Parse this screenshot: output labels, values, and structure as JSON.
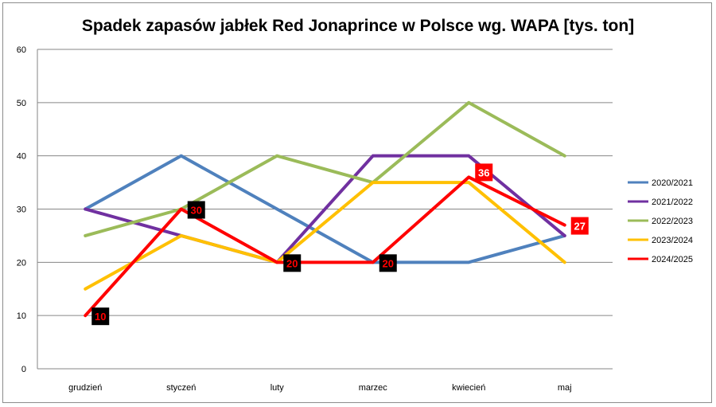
{
  "chart_data": {
    "type": "line",
    "title": "Spadek zapasów jabłek Red Jonaprince w Polsce wg. WAPA [tys. ton]",
    "xlabel": "",
    "ylabel": "",
    "ylim": [
      0,
      60
    ],
    "y_ticks": [
      0,
      10,
      20,
      30,
      40,
      50,
      60
    ],
    "grid": true,
    "legend_position": "right",
    "categories": [
      "grudzień",
      "styczeń",
      "luty",
      "marzec",
      "kwiecień",
      "maj"
    ],
    "series": [
      {
        "name": "2020/2021",
        "color": "#4f81bd",
        "values": [
          30,
          40,
          30,
          20,
          20,
          25
        ]
      },
      {
        "name": "2021/2022",
        "color": "#7030a0",
        "values": [
          30,
          25,
          20,
          40,
          40,
          25
        ]
      },
      {
        "name": "2022/2023",
        "color": "#9bbb59",
        "values": [
          25,
          30,
          40,
          35,
          50,
          40
        ]
      },
      {
        "name": "2023/2024",
        "color": "#ffc000",
        "values": [
          15,
          25,
          20,
          35,
          35,
          20
        ]
      },
      {
        "name": "2024/2025",
        "color": "#ff0000",
        "values": [
          10,
          30,
          20,
          20,
          36,
          27
        ]
      }
    ],
    "data_labels": [
      {
        "series": "2024/2025",
        "index": 0,
        "text": "10",
        "bg": "#000000",
        "fg": "#ff0000"
      },
      {
        "series": "2024/2025",
        "index": 1,
        "text": "30",
        "bg": "#000000",
        "fg": "#ff0000"
      },
      {
        "series": "2024/2025",
        "index": 2,
        "text": "20",
        "bg": "#000000",
        "fg": "#ff0000"
      },
      {
        "series": "2024/2025",
        "index": 3,
        "text": "20",
        "bg": "#000000",
        "fg": "#ff0000"
      },
      {
        "series": "2024/2025",
        "index": 4,
        "text": "36",
        "bg": "#ff0000",
        "fg": "#ffffff"
      },
      {
        "series": "2024/2025",
        "index": 5,
        "text": "27",
        "bg": "#ff0000",
        "fg": "#ffffff"
      }
    ]
  }
}
